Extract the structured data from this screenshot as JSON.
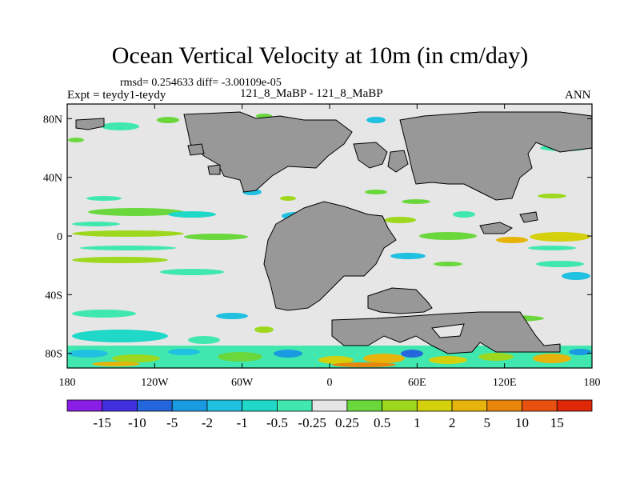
{
  "title": "Ocean Vertical Velocity at 10m (in cm/day)",
  "rmsd_text": "rmsd= 0.254633 diff= -3.00109e-05",
  "expt_text": "Expt = teydy1-teydy",
  "case_text": "121_8_MaBP - 121_8_MaBP",
  "season": "ANN",
  "lat_labels": [
    "80N",
    "40N",
    "0",
    "40S",
    "80S"
  ],
  "lon_labels": [
    "180",
    "120W",
    "60W",
    "0",
    "60E",
    "120E",
    "180"
  ],
  "colorbar": {
    "labels": [
      "-15",
      "-10",
      "-5",
      "-2",
      "-1",
      "-0.5",
      "-0.25",
      "0.25",
      "0.5",
      "1",
      "2",
      "5",
      "10",
      "15"
    ],
    "colors": [
      "#8a1ee6",
      "#4030e0",
      "#2466dc",
      "#1a9ae0",
      "#20c0e0",
      "#20d8c8",
      "#40e8b0",
      "#e6e6e6",
      "#6ad83c",
      "#9ed81e",
      "#d4d00c",
      "#e6b40a",
      "#e8860c",
      "#e85010",
      "#e02808"
    ]
  },
  "colors": {
    "land": "#989898",
    "ocean_neutral": "#e6e6e6",
    "outline": "#000000"
  }
}
